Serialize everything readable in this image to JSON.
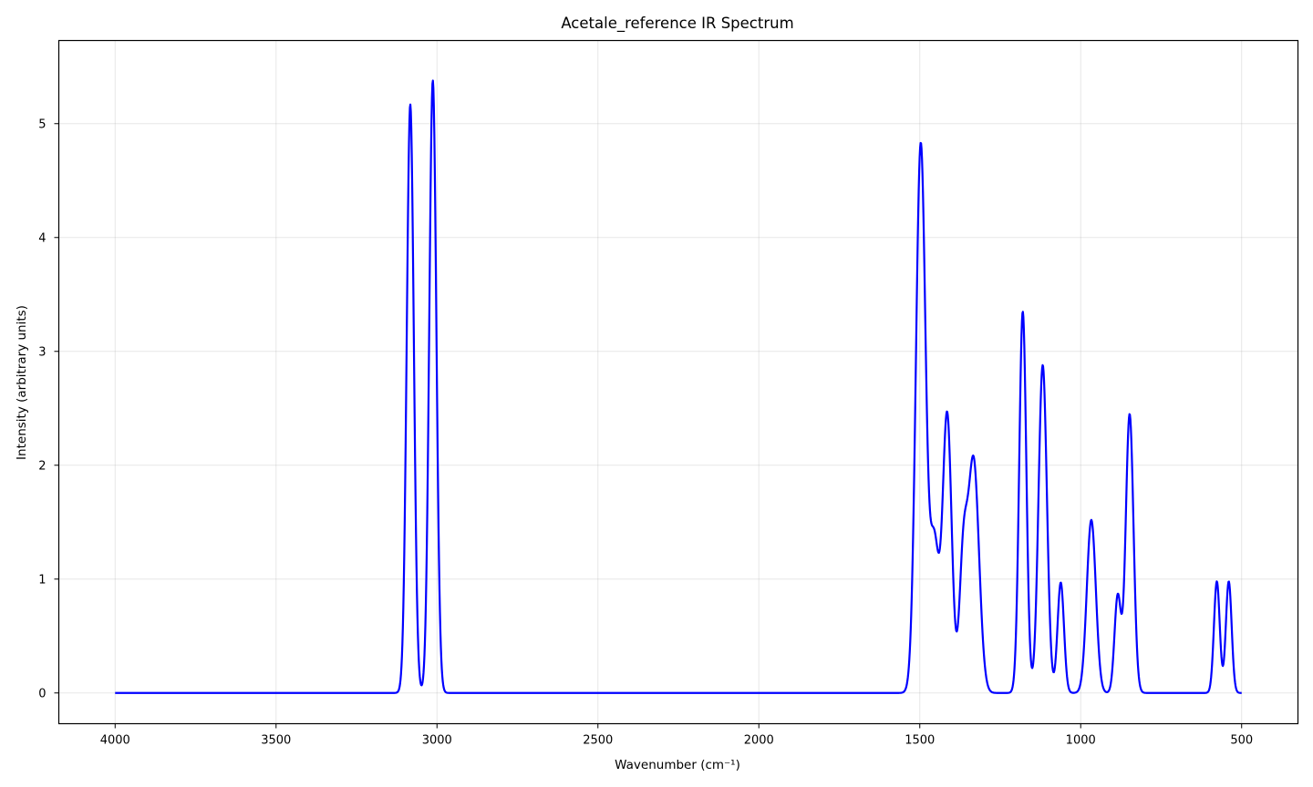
{
  "chart_data": {
    "type": "line",
    "title": "Acetale_reference IR Spectrum",
    "xlabel": "Wavenumber (cm⁻¹)",
    "ylabel": "Intensity (arbitrary units)",
    "x_axis_reversed": true,
    "xlim": [
      4175,
      325
    ],
    "ylim": [
      -0.27,
      5.73
    ],
    "xticks": [
      4000,
      3500,
      3000,
      2500,
      2000,
      1500,
      1000,
      500
    ],
    "yticks": [
      0,
      1,
      2,
      3,
      4,
      5
    ],
    "grid": true,
    "line_color": "#0000ff",
    "series": [
      {
        "x_range": [
          4000,
          500
        ],
        "peaks": [
          {
            "center": 3083,
            "height": 5.17,
            "width": 11
          },
          {
            "center": 3013,
            "height": 5.38,
            "width": 11
          },
          {
            "center": 1497,
            "height": 4.82,
            "width": 15
          },
          {
            "center": 1455,
            "height": 1.3,
            "width": 14
          },
          {
            "center": 1415,
            "height": 2.45,
            "width": 14
          },
          {
            "center": 1365,
            "height": 1.1,
            "width": 12
          },
          {
            "center": 1333,
            "height": 2.05,
            "width": 17
          },
          {
            "center": 1180,
            "height": 3.35,
            "width": 11
          },
          {
            "center": 1118,
            "height": 2.88,
            "width": 13
          },
          {
            "center": 1062,
            "height": 0.97,
            "width": 10
          },
          {
            "center": 967,
            "height": 1.52,
            "width": 14
          },
          {
            "center": 885,
            "height": 0.85,
            "width": 10
          },
          {
            "center": 848,
            "height": 2.45,
            "width": 12
          },
          {
            "center": 577,
            "height": 0.98,
            "width": 9
          },
          {
            "center": 540,
            "height": 0.98,
            "width": 9
          }
        ]
      }
    ]
  }
}
